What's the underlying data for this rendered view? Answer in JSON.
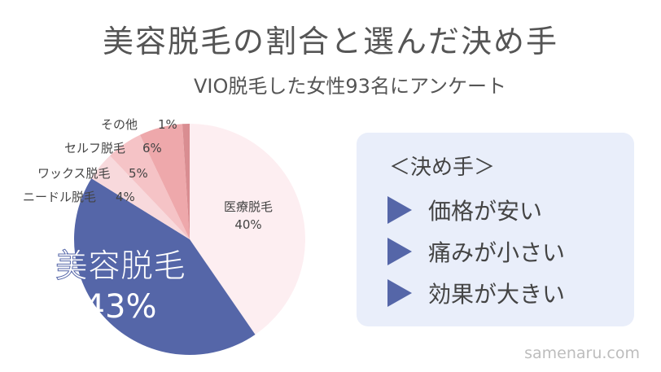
{
  "chart_data": {
    "type": "pie",
    "title": "美容脱毛の割合と選んだ決め手",
    "subtitle": "VIO脱毛した女性93名にアンケート",
    "slices": [
      {
        "label": "医療脱毛",
        "value": 40,
        "value_text": "40%",
        "color": "#fdeef1"
      },
      {
        "label": "美容脱毛",
        "value": 43,
        "value_text": "43%",
        "color": "#5566a8"
      },
      {
        "label": "ニードル脱毛",
        "value": 4,
        "value_text": "4%",
        "color": "#f8d9dc"
      },
      {
        "label": "ワックス脱毛",
        "value": 5,
        "value_text": "5%",
        "color": "#f5c3c6"
      },
      {
        "label": "セルフ脱毛",
        "value": 6,
        "value_text": "6%",
        "color": "#eea8ab"
      },
      {
        "label": "その他",
        "value": 1,
        "value_text": "1%",
        "color": "#d98d91"
      }
    ]
  },
  "labels": {
    "medical": "医療脱毛",
    "medical_pct": "40%",
    "beauty": "美容脱毛",
    "beauty_pct": "43%",
    "needle": "ニードル脱毛",
    "needle_pct": "4%",
    "wax": "ワックス脱毛",
    "wax_pct": "5%",
    "self": "セルフ脱毛",
    "self_pct": "6%",
    "other": "その他",
    "other_pct": "1%"
  },
  "panel": {
    "heading": "＜決め手＞",
    "reasons": [
      "価格が安い",
      "痛みが小さい",
      "効果が大きい"
    ]
  },
  "footer": "samenaru.com",
  "colors": {
    "accent": "#5566a8",
    "panel_bg": "#e9eefa",
    "text": "#4a4a4a"
  }
}
